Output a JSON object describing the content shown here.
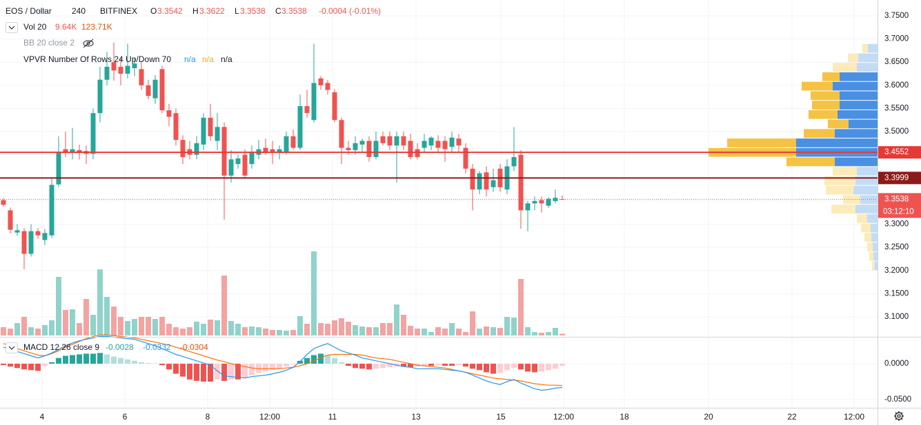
{
  "chart_data": {
    "type": "candlestick",
    "legend": {
      "symbol": "EOS / Dollar",
      "interval": "240",
      "exchange": "BITFINEX",
      "ohlc_labels": [
        "O",
        "H",
        "L",
        "C"
      ],
      "ohlc_values": [
        3.3542,
        3.3622,
        3.3538,
        3.3538
      ],
      "change": "-0.0004 (-0.01%)",
      "volume": {
        "title": "Vol 20",
        "values": [
          "9.64K",
          "123.71K"
        ]
      },
      "bb": {
        "title": "BB 20 close 2"
      },
      "vpvr": {
        "title": "VPVR Number Of Rows 24 Up/Down 70",
        "values": [
          "n/a",
          "n/a",
          "n/a"
        ]
      },
      "macd": {
        "title": "MACD 12 26 close 9",
        "values": [
          "-0.0028",
          "-0.0332",
          "-0.0304"
        ]
      }
    },
    "xlim": [
      -0.5,
      126.7
    ],
    "xticks": [
      {
        "value": 5.6,
        "label": "4"
      },
      {
        "value": 17.6,
        "label": "6"
      },
      {
        "value": 29.6,
        "label": "8"
      },
      {
        "value": 38.6,
        "label": "12:00"
      },
      {
        "value": 47.7,
        "label": "11"
      },
      {
        "value": 59.8,
        "label": "13"
      },
      {
        "value": 72.1,
        "label": "15"
      },
      {
        "value": 81.2,
        "label": "12:00"
      },
      {
        "value": 90,
        "label": "18"
      },
      {
        "value": 102.2,
        "label": "20"
      },
      {
        "value": 114.3,
        "label": "22"
      },
      {
        "value": 123.3,
        "label": "12:00"
      }
    ],
    "ylim": [
      3.0583,
      3.7842
    ],
    "yticks": [
      {
        "value": 3.75,
        "label": "3.7500"
      },
      {
        "value": 3.7,
        "label": "3.7000"
      },
      {
        "value": 3.65,
        "label": "3.6500"
      },
      {
        "value": 3.6,
        "label": "3.6000"
      },
      {
        "value": 3.55,
        "label": "3.5500"
      },
      {
        "value": 3.5,
        "label": "3.5000"
      },
      {
        "value": 3.45,
        "label": "3.4500"
      },
      {
        "value": 3.4,
        "label": "3.4000"
      },
      {
        "value": 3.35,
        "label": "3.3500"
      },
      {
        "value": 3.3,
        "label": "3.3000"
      },
      {
        "value": 3.25,
        "label": "3.2500"
      },
      {
        "value": 3.2,
        "label": "3.2000"
      },
      {
        "value": 3.15,
        "label": "3.1500"
      },
      {
        "value": 3.1,
        "label": "3.1000"
      }
    ],
    "grid": true,
    "colors": {
      "up": "#26a69a",
      "down": "#ef5350"
    },
    "candles": {
      "open": [
        3.352,
        3.33,
        3.282,
        3.285,
        3.236,
        3.285,
        3.266,
        3.276,
        3.386,
        3.462,
        3.455,
        3.46,
        3.458,
        3.452,
        3.54,
        3.612,
        3.65,
        3.64,
        3.625,
        3.637,
        3.635,
        3.6,
        3.572,
        3.635,
        3.546,
        3.54,
        3.482,
        3.462,
        3.45,
        3.472,
        3.53,
        3.48,
        3.51,
        3.405,
        3.43,
        3.45,
        3.43,
        3.45,
        3.465,
        3.462,
        3.455,
        3.455,
        3.49,
        3.465,
        3.555,
        3.525,
        3.615,
        3.605,
        3.585,
        3.525,
        3.465,
        3.46,
        3.472,
        3.48,
        3.445,
        3.49,
        3.49,
        3.47,
        3.49,
        3.48,
        3.462,
        3.465,
        3.47,
        3.48,
        3.48,
        3.467,
        3.485,
        3.465,
        3.42,
        3.375,
        3.412,
        3.38,
        3.42,
        3.375,
        3.425,
        3.45,
        3.33,
        3.345,
        3.352,
        3.34,
        3.35,
        3.3542
      ],
      "high": [
        3.356,
        3.336,
        3.3,
        3.292,
        3.3,
        3.292,
        3.29,
        3.4,
        3.49,
        3.5,
        3.508,
        3.472,
        3.47,
        3.55,
        3.64,
        3.672,
        3.692,
        3.66,
        3.69,
        3.66,
        3.65,
        3.612,
        3.622,
        3.642,
        3.56,
        3.55,
        3.492,
        3.48,
        3.49,
        3.54,
        3.56,
        3.54,
        3.52,
        3.46,
        3.45,
        3.462,
        3.47,
        3.482,
        3.485,
        3.48,
        3.47,
        3.5,
        3.505,
        3.58,
        3.59,
        3.69,
        3.62,
        3.612,
        3.592,
        3.53,
        3.48,
        3.49,
        3.485,
        3.49,
        3.5,
        3.5,
        3.5,
        3.5,
        3.5,
        3.495,
        3.475,
        3.495,
        3.49,
        3.492,
        3.49,
        3.5,
        3.495,
        3.475,
        3.43,
        3.415,
        3.425,
        3.42,
        3.43,
        3.44,
        3.51,
        3.46,
        3.35,
        3.36,
        3.36,
        3.358,
        3.375,
        3.3622
      ],
      "low": [
        3.338,
        3.28,
        3.275,
        3.203,
        3.23,
        3.268,
        3.255,
        3.27,
        3.38,
        3.445,
        3.44,
        3.44,
        3.43,
        3.44,
        3.52,
        3.6,
        3.61,
        3.6,
        3.615,
        3.62,
        3.59,
        3.57,
        3.56,
        3.54,
        3.512,
        3.47,
        3.43,
        3.44,
        3.44,
        3.46,
        3.48,
        3.46,
        3.31,
        3.39,
        3.42,
        3.4,
        3.42,
        3.44,
        3.45,
        3.43,
        3.44,
        3.45,
        3.46,
        3.46,
        3.53,
        3.52,
        3.59,
        3.58,
        3.52,
        3.43,
        3.45,
        3.45,
        3.455,
        3.435,
        3.44,
        3.47,
        3.46,
        3.39,
        3.46,
        3.44,
        3.44,
        3.455,
        3.46,
        3.455,
        3.435,
        3.455,
        3.455,
        3.41,
        3.33,
        3.365,
        3.36,
        3.37,
        3.37,
        3.365,
        3.415,
        3.29,
        3.285,
        3.33,
        3.325,
        3.335,
        3.345,
        3.3538
      ],
      "close": [
        3.342,
        3.288,
        3.287,
        3.236,
        3.285,
        3.276,
        3.281,
        3.385,
        3.455,
        3.456,
        3.462,
        3.456,
        3.452,
        3.54,
        3.612,
        3.64,
        3.632,
        3.625,
        3.642,
        3.647,
        3.6,
        3.577,
        3.612,
        3.546,
        3.532,
        3.482,
        3.445,
        3.45,
        3.475,
        3.53,
        3.49,
        3.51,
        3.405,
        3.44,
        3.442,
        3.405,
        3.455,
        3.462,
        3.455,
        3.455,
        3.462,
        3.49,
        3.465,
        3.555,
        3.54,
        3.605,
        3.6,
        3.59,
        3.525,
        3.465,
        3.46,
        3.475,
        3.48,
        3.445,
        3.48,
        3.475,
        3.47,
        3.49,
        3.47,
        3.445,
        3.445,
        3.48,
        3.487,
        3.465,
        3.462,
        3.487,
        3.47,
        3.42,
        3.375,
        3.41,
        3.375,
        3.395,
        3.38,
        3.425,
        3.445,
        3.33,
        3.345,
        3.35,
        3.345,
        3.355,
        3.357,
        3.3538
      ]
    },
    "volume": {
      "ylim": [
        0,
        600
      ],
      "colors": {
        "up": "#8fd3cb",
        "down": "#f3a3a1"
      },
      "values": [
        48,
        40,
        72,
        108,
        48,
        40,
        60,
        88,
        340,
        148,
        152,
        72,
        212,
        120,
        384,
        224,
        168,
        108,
        84,
        96,
        108,
        108,
        96,
        108,
        68,
        48,
        40,
        48,
        80,
        68,
        92,
        88,
        348,
        84,
        68,
        48,
        52,
        48,
        40,
        32,
        32,
        28,
        32,
        112,
        68,
        488,
        72,
        68,
        88,
        100,
        80,
        60,
        52,
        48,
        48,
        72,
        72,
        180,
        120,
        56,
        40,
        40,
        20,
        48,
        40,
        72,
        40,
        20,
        140,
        40,
        52,
        48,
        44,
        108,
        104,
        328,
        48,
        20,
        16,
        20,
        44,
        9.64
      ]
    },
    "volume_profile": {
      "range": [
        3.2,
        3.69
      ],
      "xlim": [
        0,
        250
      ],
      "value_area": [
        3.425,
        3.629
      ],
      "colors": {
        "up": "#f5c343",
        "down": "#4a90e2",
        "up_outside": "#fcebb9",
        "down_outside": "#c3dcf6"
      },
      "up": [
        8,
        15,
        35,
        25,
        45,
        42,
        40,
        42,
        30,
        45,
        100,
        127,
        70,
        35,
        45,
        40,
        25,
        35,
        15,
        14,
        10,
        8,
        6,
        4
      ],
      "down": [
        14,
        28,
        30,
        55,
        65,
        55,
        55,
        58,
        42,
        62,
        118,
        118,
        62,
        30,
        32,
        35,
        25,
        32,
        15,
        10,
        9,
        7,
        6,
        4
      ]
    },
    "price_lines": [
      {
        "value": 3.4552,
        "color": "#e53935"
      },
      {
        "value": 3.3999,
        "color": "#8b1a1a"
      }
    ],
    "current_price": {
      "value": 3.3538,
      "color": "#ef5350",
      "countdown": "03:12:10"
    },
    "macd": {
      "ylim": [
        -0.0615,
        0.0365
      ],
      "yticks": [
        {
          "value": 0,
          "label": "0.0000"
        },
        {
          "value": -0.05,
          "label": "-0.0500"
        }
      ],
      "line_color": "#2196f3",
      "signal_color": "#ff6d00",
      "hist_colors": {
        "pos_rising": "#26a69a",
        "pos_falling": "#b2dfdb",
        "neg_falling": "#ef5350",
        "neg_rising": "#ffcdd2"
      },
      "macd": [
        0.023,
        0.02,
        0.017,
        0.014,
        0.011,
        0.008,
        0.011,
        0.015,
        0.02,
        0.025,
        0.029,
        0.032,
        0.034,
        0.036,
        0.038,
        0.038,
        0.037,
        0.036,
        0.035,
        0.034,
        0.031,
        0.028,
        0.025,
        0.021,
        0.017,
        0.013,
        0.01,
        0.007,
        0.004,
        0.001,
        -0.002,
        -0.01,
        -0.017,
        -0.018,
        -0.019,
        -0.02,
        -0.018,
        -0.017,
        -0.016,
        -0.014,
        -0.012,
        -0.009,
        -0.005,
        0.003,
        0.013,
        0.021,
        0.025,
        0.028,
        0.023,
        0.018,
        0.015,
        0.012,
        0.008,
        0.006,
        0.004,
        0.002,
        0,
        -0.002,
        -0.004,
        -0.005,
        -0.007,
        -0.007,
        -0.007,
        -0.007,
        -0.008,
        -0.009,
        -0.01,
        -0.012,
        -0.016,
        -0.02,
        -0.024,
        -0.027,
        -0.029,
        -0.025,
        -0.022,
        -0.027,
        -0.031,
        -0.035,
        -0.037,
        -0.036,
        -0.034,
        -0.0332
      ],
      "signal": [
        0.028,
        0.025,
        0.021,
        0.018,
        0.015,
        0.012,
        0.011,
        0.014,
        0.018,
        0.023,
        0.027,
        0.031,
        0.035,
        0.038,
        0.04,
        0.04,
        0.039,
        0.038,
        0.037,
        0.036,
        0.034,
        0.032,
        0.03,
        0.028,
        0.026,
        0.023,
        0.02,
        0.017,
        0.014,
        0.011,
        0.008,
        0.005,
        0.003,
        0,
        -0.002,
        -0.004,
        -0.006,
        -0.007,
        -0.007,
        -0.007,
        -0.007,
        -0.006,
        -0.005,
        -0.003,
        0,
        0.004,
        0.008,
        0.012,
        0.013,
        0.013,
        0.013,
        0.013,
        0.012,
        0.01,
        0.008,
        0.007,
        0.006,
        0.004,
        0.002,
        0,
        -0.002,
        -0.003,
        -0.004,
        -0.005,
        -0.006,
        -0.008,
        -0.01,
        -0.012,
        -0.014,
        -0.016,
        -0.018,
        -0.02,
        -0.021,
        -0.022,
        -0.023,
        -0.024,
        -0.026,
        -0.028,
        -0.029,
        -0.03,
        -0.03,
        -0.0304
      ],
      "hist": [
        -0.002,
        -0.004,
        -0.006,
        -0.008,
        -0.009,
        -0.01,
        -0.003,
        0.002,
        0.008,
        0.011,
        0.012,
        0.013,
        0.014,
        0.014,
        0.015,
        0.013,
        0.01,
        0.008,
        0.006,
        0.004,
        0.002,
        0.001,
        0.0005,
        -0.002,
        -0.008,
        -0.014,
        -0.018,
        -0.022,
        -0.024,
        -0.025,
        -0.025,
        -0.022,
        -0.024,
        -0.022,
        -0.022,
        -0.02,
        -0.016,
        -0.013,
        -0.011,
        -0.009,
        -0.007,
        -0.004,
        -0.001,
        0.004,
        0.008,
        0.012,
        0.014,
        0.012,
        0.008,
        0.002,
        -0.003,
        -0.006,
        -0.007,
        -0.008,
        -0.007,
        -0.006,
        -0.005,
        -0.004,
        -0.004,
        -0.005,
        -0.004,
        -0.003,
        -0.003,
        -0.002,
        -0.003,
        -0.003,
        -0.002,
        -0.004,
        -0.007,
        -0.009,
        -0.012,
        -0.014,
        -0.013,
        -0.009,
        -0.006,
        -0.008,
        -0.011,
        -0.012,
        -0.011,
        -0.009,
        -0.007,
        -0.0028
      ]
    }
  }
}
